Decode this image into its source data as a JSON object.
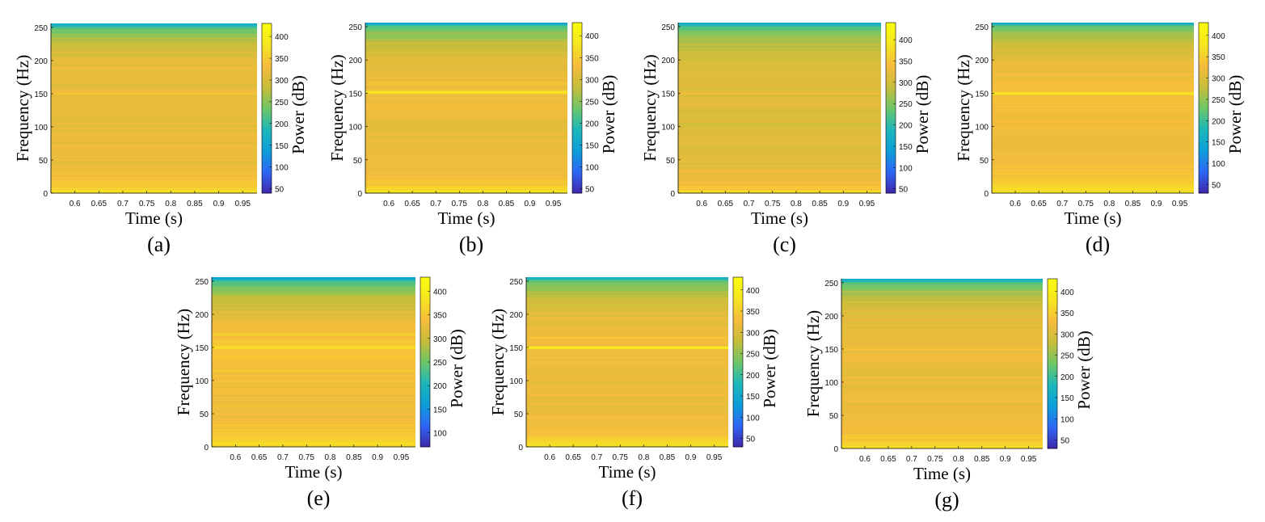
{
  "figure": {
    "colormap": [
      "#3e26a8",
      "#2f66f5",
      "#0d9ed9",
      "#1db7b9",
      "#6ec668",
      "#c7bd3a",
      "#f6bc3c",
      "#f6e620",
      "#f9fb0e"
    ],
    "panels": [
      {
        "caption": "(a)",
        "chart_data": {
          "type": "heatmap",
          "xlabel": "Time (s)",
          "ylabel": "Frequency (Hz)",
          "clabel": "Power (dB)",
          "xlim": [
            0.55,
            0.98
          ],
          "ylim": [
            0,
            256
          ],
          "xticks": [
            "0.6",
            "0.65",
            "0.7",
            "0.75",
            "0.8",
            "0.85",
            "0.9",
            "0.95"
          ],
          "yticks": [
            "0",
            "50",
            "100",
            "150",
            "200",
            "250"
          ],
          "clim": [
            40,
            430
          ],
          "cticks": [
            "50",
            "100",
            "150",
            "200",
            "250",
            "300",
            "350",
            "400"
          ],
          "profile": [
            [
              0,
              375
            ],
            [
              10,
              352
            ],
            [
              20,
              336
            ],
            [
              50,
              322
            ],
            [
              100,
              318
            ],
            [
              150,
              322
            ],
            [
              200,
              312
            ],
            [
              225,
              285
            ],
            [
              240,
              252
            ],
            [
              250,
              220
            ],
            [
              256,
              150
            ]
          ],
          "bright_bands": [
            [
              150,
              1.5,
              20
            ]
          ]
        }
      },
      {
        "caption": "(b)",
        "chart_data": {
          "type": "heatmap",
          "xlabel": "Time (s)",
          "ylabel": "Frequency (Hz)",
          "clabel": "Power (dB)",
          "xlim": [
            0.55,
            0.98
          ],
          "ylim": [
            0,
            256
          ],
          "xticks": [
            "0.6",
            "0.65",
            "0.7",
            "0.75",
            "0.8",
            "0.85",
            "0.9",
            "0.95"
          ],
          "yticks": [
            "0",
            "50",
            "100",
            "150",
            "200",
            "250"
          ],
          "clim": [
            40,
            430
          ],
          "cticks": [
            "50",
            "100",
            "150",
            "200",
            "250",
            "300",
            "350",
            "400"
          ],
          "profile": [
            [
              0,
              380
            ],
            [
              10,
              350
            ],
            [
              25,
              332
            ],
            [
              50,
              320
            ],
            [
              100,
              318
            ],
            [
              150,
              330
            ],
            [
              200,
              312
            ],
            [
              225,
              285
            ],
            [
              240,
              252
            ],
            [
              250,
              220
            ],
            [
              256,
              150
            ]
          ],
          "bright_bands": [
            [
              152,
              2,
              60
            ],
            [
              166,
              1.5,
              25
            ]
          ]
        }
      },
      {
        "caption": "(c)",
        "chart_data": {
          "type": "heatmap",
          "xlabel": "Time (s)",
          "ylabel": "Frequency (Hz)",
          "clabel": "Power (dB)",
          "xlim": [
            0.55,
            0.98
          ],
          "ylim": [
            0,
            256
          ],
          "xticks": [
            "0.6",
            "0.65",
            "0.7",
            "0.75",
            "0.8",
            "0.85",
            "0.9",
            "0.95"
          ],
          "yticks": [
            "0",
            "50",
            "100",
            "150",
            "200",
            "250"
          ],
          "clim": [
            40,
            440
          ],
          "cticks": [
            "50",
            "100",
            "150",
            "200",
            "250",
            "300",
            "350",
            "400"
          ],
          "profile": [
            [
              0,
              372
            ],
            [
              10,
              345
            ],
            [
              25,
              328
            ],
            [
              50,
              318
            ],
            [
              100,
              312
            ],
            [
              150,
              318
            ],
            [
              200,
              308
            ],
            [
              225,
              283
            ],
            [
              240,
              252
            ],
            [
              250,
              220
            ],
            [
              256,
              150
            ]
          ],
          "bright_bands": [
            [
              150,
              1.5,
              15
            ]
          ]
        }
      },
      {
        "caption": "(d)",
        "chart_data": {
          "type": "heatmap",
          "xlabel": "Time (s)",
          "ylabel": "Frequency (Hz)",
          "clabel": "Power (dB)",
          "xlim": [
            0.55,
            0.98
          ],
          "ylim": [
            0,
            256
          ],
          "xticks": [
            "0.6",
            "0.65",
            "0.7",
            "0.75",
            "0.8",
            "0.85",
            "0.9",
            "0.95"
          ],
          "yticks": [
            "0",
            "50",
            "100",
            "150",
            "200",
            "250"
          ],
          "clim": [
            30,
            430
          ],
          "cticks": [
            "50",
            "100",
            "150",
            "200",
            "250",
            "300",
            "350",
            "400"
          ],
          "profile": [
            [
              0,
              385
            ],
            [
              10,
              356
            ],
            [
              25,
              338
            ],
            [
              50,
              324
            ],
            [
              100,
              322
            ],
            [
              150,
              336
            ],
            [
              200,
              315
            ],
            [
              225,
              288
            ],
            [
              240,
              255
            ],
            [
              250,
              222
            ],
            [
              256,
              150
            ]
          ],
          "bright_bands": [
            [
              150,
              2,
              55
            ],
            [
              100,
              1.5,
              20
            ]
          ]
        }
      },
      {
        "caption": "(e)",
        "chart_data": {
          "type": "heatmap",
          "xlabel": "Time (s)",
          "ylabel": "Frequency (Hz)",
          "clabel": "Power (dB)",
          "xlim": [
            0.55,
            0.98
          ],
          "ylim": [
            0,
            256
          ],
          "xticks": [
            "0.6",
            "0.65",
            "0.7",
            "0.75",
            "0.8",
            "0.85",
            "0.9",
            "0.95"
          ],
          "yticks": [
            "0",
            "50",
            "100",
            "150",
            "200",
            "250"
          ],
          "clim": [
            70,
            430
          ],
          "cticks": [
            "100",
            "150",
            "200",
            "250",
            "300",
            "350",
            "400"
          ],
          "profile": [
            [
              0,
              382
            ],
            [
              10,
              358
            ],
            [
              30,
              345
            ],
            [
              50,
              338
            ],
            [
              100,
              340
            ],
            [
              150,
              350
            ],
            [
              180,
              338
            ],
            [
              200,
              318
            ],
            [
              225,
              292
            ],
            [
              240,
              258
            ],
            [
              250,
              225
            ],
            [
              256,
              160
            ]
          ],
          "bright_bands": [
            [
              150,
              2,
              25
            ],
            [
              170,
              2,
              20
            ]
          ]
        }
      },
      {
        "caption": "(f)",
        "chart_data": {
          "type": "heatmap",
          "xlabel": "Time (s)",
          "ylabel": "Frequency (Hz)",
          "clabel": "Power (dB)",
          "xlim": [
            0.55,
            0.98
          ],
          "ylim": [
            0,
            256
          ],
          "xticks": [
            "0.6",
            "0.65",
            "0.7",
            "0.75",
            "0.8",
            "0.85",
            "0.9",
            "0.95"
          ],
          "yticks": [
            "0",
            "50",
            "100",
            "150",
            "200",
            "250"
          ],
          "clim": [
            30,
            430
          ],
          "cticks": [
            "50",
            "100",
            "150",
            "200",
            "250",
            "300",
            "350",
            "400"
          ],
          "profile": [
            [
              0,
              380
            ],
            [
              10,
              350
            ],
            [
              25,
              330
            ],
            [
              50,
              320
            ],
            [
              100,
              318
            ],
            [
              150,
              328
            ],
            [
              200,
              310
            ],
            [
              225,
              283
            ],
            [
              240,
              252
            ],
            [
              250,
              220
            ],
            [
              256,
              150
            ]
          ],
          "bright_bands": [
            [
              150,
              2,
              75
            ],
            [
              165,
              1.5,
              20
            ]
          ]
        }
      },
      {
        "caption": "(g)",
        "chart_data": {
          "type": "heatmap",
          "xlabel": "Time (s)",
          "ylabel": "Frequency (Hz)",
          "clabel": "Power (dB)",
          "xlim": [
            0.55,
            0.98
          ],
          "ylim": [
            0,
            256
          ],
          "xticks": [
            "0.6",
            "0.65",
            "0.7",
            "0.75",
            "0.8",
            "0.85",
            "0.9",
            "0.95"
          ],
          "yticks": [
            "0",
            "50",
            "100",
            "150",
            "200",
            "250"
          ],
          "clim": [
            30,
            430
          ],
          "cticks": [
            "50",
            "100",
            "150",
            "200",
            "250",
            "300",
            "350",
            "400"
          ],
          "profile": [
            [
              0,
              378
            ],
            [
              10,
              348
            ],
            [
              25,
              330
            ],
            [
              50,
              318
            ],
            [
              100,
              316
            ],
            [
              150,
              322
            ],
            [
              200,
              308
            ],
            [
              225,
              282
            ],
            [
              240,
              250
            ],
            [
              250,
              218
            ],
            [
              256,
              150
            ]
          ],
          "bright_bands": [
            [
              150,
              1.5,
              25
            ],
            [
              100,
              1.5,
              15
            ]
          ]
        }
      }
    ]
  }
}
